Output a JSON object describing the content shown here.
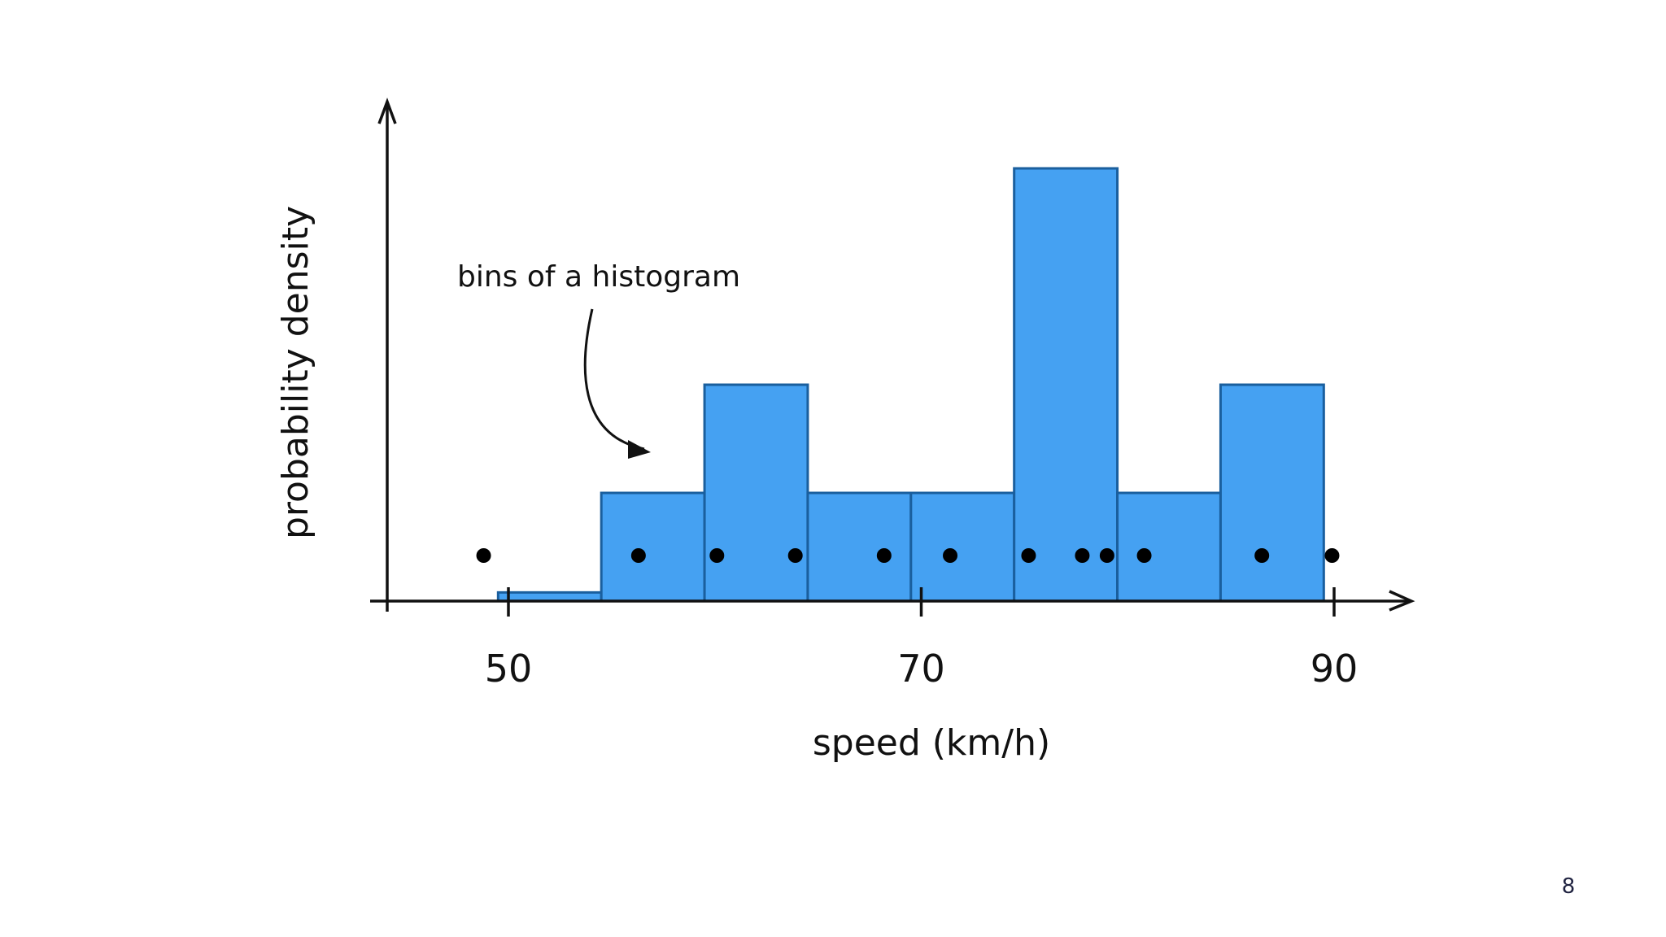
{
  "page_number": "8",
  "chart_data": {
    "type": "bar",
    "title": "",
    "xlabel": "speed (km/h)",
    "ylabel": "probability density",
    "xlim": [
      45,
      93
    ],
    "ylim": [
      0,
      0.1
    ],
    "x_ticks": [
      {
        "value": 50,
        "label": "50"
      },
      {
        "value": 70,
        "label": "70"
      },
      {
        "value": 90,
        "label": "90"
      }
    ],
    "bins": [
      {
        "start": 49.5,
        "end": 54.5,
        "density": 0.002
      },
      {
        "start": 54.5,
        "end": 59.5,
        "density": 0.025
      },
      {
        "start": 59.5,
        "end": 64.5,
        "density": 0.05
      },
      {
        "start": 64.5,
        "end": 69.5,
        "density": 0.025
      },
      {
        "start": 69.5,
        "end": 74.5,
        "density": 0.025
      },
      {
        "start": 74.5,
        "end": 79.5,
        "density": 0.1
      },
      {
        "start": 79.5,
        "end": 84.5,
        "density": 0.025
      },
      {
        "start": 84.5,
        "end": 89.5,
        "density": 0.05
      }
    ],
    "observations": [
      48.8,
      56.3,
      60.1,
      63.9,
      68.2,
      71.4,
      75.2,
      77.8,
      79.0,
      80.8,
      86.5,
      89.9
    ],
    "annotation": "bins of a histogram",
    "colors": {
      "bar_fill": "#45a1f2",
      "bar_edge": "#1a5f9e",
      "axis": "#111111",
      "point": "#000000"
    }
  }
}
